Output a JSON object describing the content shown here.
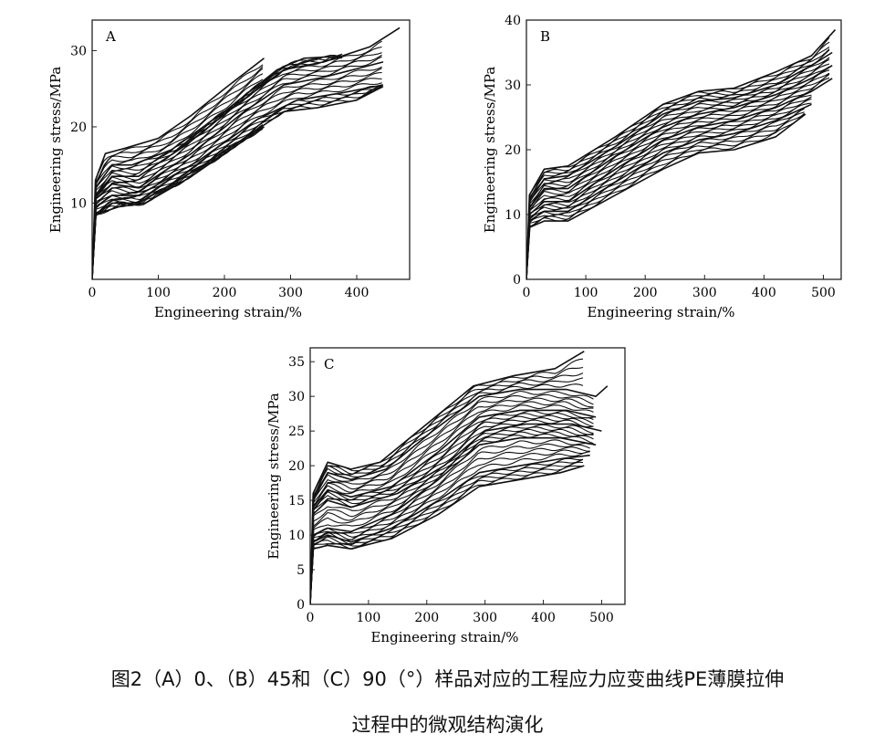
{
  "figure": {
    "caption_line1": "图2（A）0、（B）45和（C）90（°）样品对应的工程应力应变曲线PE薄膜拉伸",
    "caption_line2": "过程中的微观结构演化"
  },
  "colors": {
    "curve": "#111111",
    "axis": "#222222",
    "background": "#ffffff"
  },
  "chart_data": [
    {
      "type": "line",
      "panel": "A",
      "xlabel": "Engineering strain/%",
      "ylabel": "Engineering stress/MPa",
      "xlim": [
        0,
        480
      ],
      "ylim": [
        0,
        34
      ],
      "xticks": [
        0,
        100,
        200,
        300,
        400
      ],
      "yticks": [
        10,
        20,
        30
      ],
      "grid": false,
      "series_summary": "≈40 overlapping specimen curves",
      "series": [
        {
          "values": [
            [
              0,
              0
            ],
            [
              5,
              13
            ],
            [
              20,
              16.5
            ],
            [
              50,
              17.2
            ],
            [
              100,
              18.5
            ],
            [
              150,
              21.5
            ],
            [
              200,
              25
            ],
            [
              260,
              29
            ]
          ]
        },
        {
          "values": [
            [
              0,
              0
            ],
            [
              5,
              12
            ],
            [
              30,
              15
            ],
            [
              60,
              15
            ],
            [
              120,
              17
            ],
            [
              200,
              22
            ],
            [
              280,
              27.5
            ],
            [
              320,
              29
            ],
            [
              380,
              29.3
            ]
          ]
        },
        {
          "values": [
            [
              0,
              0
            ],
            [
              5,
              11
            ],
            [
              30,
              13.5
            ],
            [
              70,
              13.5
            ],
            [
              140,
              17.5
            ],
            [
              220,
              23
            ],
            [
              290,
              27.5
            ],
            [
              350,
              28.5
            ],
            [
              420,
              30.5
            ],
            [
              465,
              33
            ]
          ]
        },
        {
          "values": [
            [
              0,
              0
            ],
            [
              5,
              10.5
            ],
            [
              30,
              12.5
            ],
            [
              70,
              12
            ],
            [
              150,
              16.5
            ],
            [
              230,
              22
            ],
            [
              290,
              25.5
            ],
            [
              350,
              26.5
            ],
            [
              440,
              28.5
            ]
          ]
        },
        {
          "values": [
            [
              0,
              0
            ],
            [
              5,
              9.5
            ],
            [
              30,
              11
            ],
            [
              70,
              11
            ],
            [
              160,
              15.5
            ],
            [
              250,
              21
            ],
            [
              310,
              23.5
            ],
            [
              380,
              24.5
            ],
            [
              440,
              25.5
            ]
          ]
        },
        {
          "values": [
            [
              0,
              0
            ],
            [
              5,
              8.5
            ],
            [
              30,
              10
            ],
            [
              70,
              10
            ],
            [
              150,
              14
            ],
            [
              230,
              18.5
            ],
            [
              290,
              22
            ],
            [
              340,
              22.5
            ],
            [
              400,
              23.5
            ],
            [
              440,
              25.3
            ]
          ]
        },
        {
          "values": [
            [
              0,
              0
            ],
            [
              5,
              8.5
            ],
            [
              40,
              9.5
            ],
            [
              80,
              10
            ],
            [
              150,
              13.5
            ],
            [
              200,
              16.5
            ],
            [
              260,
              20
            ]
          ]
        }
      ]
    },
    {
      "type": "line",
      "panel": "B",
      "xlabel": "Engineering strain/%",
      "ylabel": "Engineering stress/MPa",
      "xlim": [
        0,
        530
      ],
      "ylim": [
        0,
        40
      ],
      "xticks": [
        0,
        100,
        200,
        300,
        400,
        500
      ],
      "yticks": [
        0,
        10,
        20,
        30,
        40
      ],
      "grid": false,
      "series_summary": "≈40 overlapping specimen curves",
      "series": [
        {
          "values": [
            [
              0,
              0
            ],
            [
              5,
              13
            ],
            [
              30,
              17
            ],
            [
              70,
              17.5
            ],
            [
              150,
              22
            ],
            [
              230,
              27
            ],
            [
              290,
              29
            ],
            [
              350,
              29.5
            ],
            [
              420,
              32
            ],
            [
              480,
              34.5
            ],
            [
              520,
              38.5
            ]
          ]
        },
        {
          "values": [
            [
              0,
              0
            ],
            [
              5,
              12
            ],
            [
              30,
              15.5
            ],
            [
              70,
              16
            ],
            [
              150,
              20.5
            ],
            [
              230,
              25.5
            ],
            [
              290,
              27.5
            ],
            [
              350,
              28
            ],
            [
              420,
              30
            ],
            [
              480,
              33
            ],
            [
              515,
              35
            ]
          ]
        },
        {
          "values": [
            [
              0,
              0
            ],
            [
              5,
              11
            ],
            [
              30,
              14
            ],
            [
              70,
              14
            ],
            [
              150,
              19
            ],
            [
              230,
              23.5
            ],
            [
              290,
              25.5
            ],
            [
              350,
              26.5
            ],
            [
              420,
              28.5
            ],
            [
              480,
              31
            ],
            [
              515,
              33
            ]
          ]
        },
        {
          "values": [
            [
              0,
              0
            ],
            [
              5,
              10
            ],
            [
              30,
              12
            ],
            [
              70,
              12
            ],
            [
              150,
              17
            ],
            [
              230,
              21.5
            ],
            [
              290,
              23.5
            ],
            [
              350,
              24.5
            ],
            [
              420,
              26.5
            ],
            [
              480,
              29
            ],
            [
              515,
              31
            ]
          ]
        },
        {
          "values": [
            [
              0,
              0
            ],
            [
              5,
              9
            ],
            [
              30,
              10.5
            ],
            [
              70,
              10.5
            ],
            [
              150,
              15
            ],
            [
              230,
              19.5
            ],
            [
              290,
              21.5
            ],
            [
              350,
              22.5
            ],
            [
              420,
              24.5
            ],
            [
              480,
              27
            ]
          ]
        },
        {
          "values": [
            [
              0,
              0
            ],
            [
              5,
              8
            ],
            [
              30,
              9
            ],
            [
              70,
              9
            ],
            [
              150,
              13
            ],
            [
              230,
              17
            ],
            [
              290,
              19.5
            ],
            [
              350,
              20
            ],
            [
              420,
              22
            ],
            [
              470,
              25.5
            ]
          ]
        }
      ]
    },
    {
      "type": "line",
      "panel": "C",
      "xlabel": "Engineering strain/%",
      "ylabel": "Engineering stress/MPa",
      "xlim": [
        0,
        540
      ],
      "ylim": [
        0,
        37
      ],
      "xticks": [
        0,
        100,
        200,
        300,
        400,
        500
      ],
      "yticks": [
        0,
        5,
        10,
        15,
        20,
        25,
        30,
        35
      ],
      "grid": false,
      "series_summary": "two bands of ≈25 curves each (upper band yielding near 15–20 MPa, lower near 8–11 MPa)",
      "series": [
        {
          "values": [
            [
              0,
              0
            ],
            [
              5,
              16
            ],
            [
              30,
              20.5
            ],
            [
              70,
              19.5
            ],
            [
              120,
              20.5
            ],
            [
              200,
              26
            ],
            [
              280,
              31.5
            ],
            [
              350,
              33
            ],
            [
              420,
              34
            ],
            [
              470,
              36.5
            ]
          ]
        },
        {
          "values": [
            [
              0,
              0
            ],
            [
              5,
              15
            ],
            [
              30,
              19
            ],
            [
              70,
              18
            ],
            [
              130,
              19.5
            ],
            [
              210,
              25
            ],
            [
              290,
              30
            ],
            [
              360,
              31
            ],
            [
              440,
              31
            ],
            [
              490,
              30
            ],
            [
              510,
              31.5
            ]
          ]
        },
        {
          "values": [
            [
              0,
              0
            ],
            [
              5,
              14
            ],
            [
              30,
              16.5
            ],
            [
              70,
              15.5
            ],
            [
              140,
              17
            ],
            [
              220,
              22
            ],
            [
              290,
              27
            ],
            [
              360,
              28
            ],
            [
              440,
              28
            ],
            [
              490,
              27
            ]
          ]
        },
        {
          "values": [
            [
              0,
              0
            ],
            [
              5,
              13
            ],
            [
              30,
              15
            ],
            [
              70,
              14
            ],
            [
              150,
              16
            ],
            [
              230,
              20
            ],
            [
              300,
              25
            ],
            [
              370,
              26
            ],
            [
              450,
              26
            ],
            [
              500,
              25
            ]
          ]
        },
        {
          "values": [
            [
              0,
              0
            ],
            [
              5,
              10
            ],
            [
              30,
              11
            ],
            [
              70,
              10.5
            ],
            [
              140,
              13
            ],
            [
              220,
              18
            ],
            [
              290,
              23
            ],
            [
              360,
              24
            ],
            [
              430,
              24
            ],
            [
              490,
              23
            ]
          ]
        },
        {
          "values": [
            [
              0,
              0
            ],
            [
              5,
              9
            ],
            [
              30,
              10
            ],
            [
              70,
              9
            ],
            [
              140,
              11
            ],
            [
              220,
              15
            ],
            [
              290,
              19
            ],
            [
              360,
              20
            ],
            [
              430,
              21
            ],
            [
              480,
              21.5
            ]
          ]
        },
        {
          "values": [
            [
              0,
              0
            ],
            [
              5,
              8
            ],
            [
              30,
              8.5
            ],
            [
              70,
              8
            ],
            [
              140,
              9.5
            ],
            [
              220,
              13
            ],
            [
              290,
              17
            ],
            [
              360,
              18
            ],
            [
              430,
              19
            ],
            [
              470,
              20
            ]
          ]
        }
      ]
    }
  ]
}
